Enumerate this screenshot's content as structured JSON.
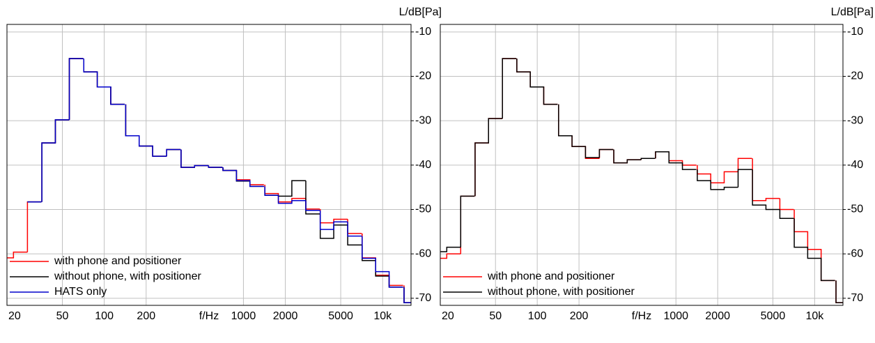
{
  "chart_data": [
    {
      "type": "step",
      "log_x": true,
      "grid": true,
      "legend": "lower left",
      "xlabel": "f/Hz",
      "ylabel": "L/dB[Pa]",
      "x": [
        20,
        25,
        31.5,
        40,
        50,
        63,
        80,
        100,
        125,
        160,
        200,
        250,
        315,
        400,
        500,
        630,
        800,
        1000,
        1250,
        1600,
        2000,
        2500,
        3150,
        4000,
        5000,
        6300,
        8000,
        10000,
        12500,
        16000
      ],
      "xlim": [
        20,
        16000
      ],
      "ylim": [
        -71.6,
        -8.3
      ],
      "xticks": [
        20,
        50,
        100,
        200,
        1000,
        2000,
        5000,
        {
          "value": 10000,
          "label": "10k"
        }
      ],
      "yticks": [
        -10,
        -20,
        -30,
        -40,
        -50,
        -60,
        -70
      ],
      "series": [
        {
          "name": "with phone and positioner",
          "color": "#ff0000",
          "values": [
            -60.9,
            -59.6,
            -48.3,
            -35,
            -29.8,
            -16,
            -19,
            -22.4,
            -26.3,
            -33.4,
            -35.7,
            -38,
            -36.5,
            -40.5,
            -40.1,
            -40.5,
            -41.2,
            -43.3,
            -44.4,
            -46.4,
            -48.3,
            -47.5,
            -49.9,
            -53.0,
            -52.2,
            -55.4,
            -60.9,
            -64.8,
            -67.1,
            -71
          ]
        },
        {
          "name": "without phone, with positioner",
          "color": "#000000",
          "values": [
            null,
            null,
            -48.3,
            -35,
            -29.8,
            -16,
            -19,
            -22.4,
            -26.3,
            -33.4,
            -35.7,
            -38,
            -36.5,
            -40.5,
            -40.1,
            -40.5,
            -41.2,
            -43.6,
            -44.8,
            -46.8,
            -47.0,
            -43.5,
            -51.0,
            -56.5,
            -53.5,
            -58.0,
            -61.5,
            -65.0,
            -67.5,
            -71
          ]
        },
        {
          "name": "HATS only",
          "color": "#0000cc",
          "values": [
            null,
            null,
            -48.3,
            -35,
            -29.8,
            -16,
            -19,
            -22.4,
            -26.3,
            -33.4,
            -35.7,
            -38,
            -36.5,
            -40.5,
            -40.1,
            -40.5,
            -41.2,
            -43.5,
            -44.8,
            -46.8,
            -48.6,
            -48.0,
            -50.2,
            -54.5,
            -52.8,
            -56.0,
            -61.0,
            -64.0,
            -67.5,
            -71
          ]
        }
      ]
    },
    {
      "type": "step",
      "log_x": true,
      "grid": true,
      "legend": "lower left",
      "xlabel": "f/Hz",
      "ylabel": "L/dB[Pa]",
      "x": [
        20,
        25,
        31.5,
        40,
        50,
        63,
        80,
        100,
        125,
        160,
        200,
        250,
        315,
        400,
        500,
        630,
        800,
        1000,
        1250,
        1600,
        2000,
        2500,
        3150,
        4000,
        5000,
        6300,
        8000,
        10000,
        12500,
        16000
      ],
      "xlim": [
        20,
        16000
      ],
      "ylim": [
        -71.6,
        -8.3
      ],
      "xticks": [
        20,
        50,
        100,
        200,
        1000,
        2000,
        5000,
        {
          "value": 10000,
          "label": "10k"
        }
      ],
      "yticks": [
        -10,
        -20,
        -30,
        -40,
        -50,
        -60,
        -70
      ],
      "series": [
        {
          "name": "with phone and positioner",
          "color": "#ff0000",
          "values": [
            -61,
            -60,
            -47,
            -35,
            -29.5,
            -16,
            -19,
            -22.4,
            -26.3,
            -33.4,
            -35.8,
            -38.5,
            -36.5,
            -39.5,
            -38.8,
            -38.5,
            -37,
            -39,
            -40,
            -42,
            -44,
            -41.5,
            -38.5,
            -48,
            -47.5,
            -50,
            -55,
            -59,
            -66,
            -71
          ]
        },
        {
          "name": "without phone, with positioner",
          "color": "#000000",
          "values": [
            -59.5,
            -58.5,
            -47,
            -35,
            -29.5,
            -16,
            -19,
            -22.4,
            -26.3,
            -33.4,
            -35.8,
            -38.3,
            -36.5,
            -39.5,
            -38.8,
            -38.5,
            -37,
            -39.5,
            -41,
            -43.5,
            -45.5,
            -45,
            -41,
            -49,
            -50,
            -52,
            -58.5,
            -61,
            -66,
            -71
          ]
        }
      ]
    }
  ]
}
